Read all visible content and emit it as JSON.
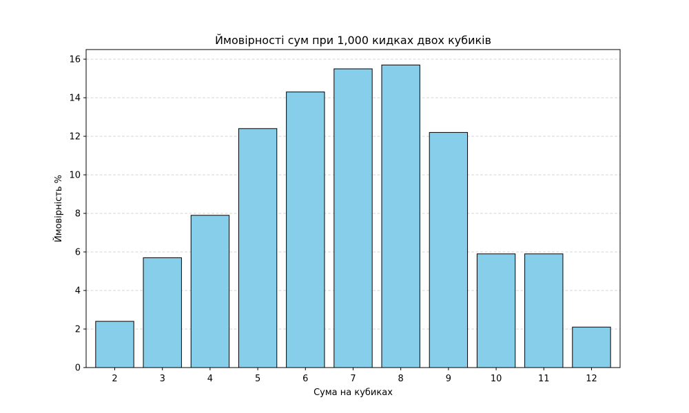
{
  "chart_data": {
    "type": "bar",
    "title": "Ймовірності сум при 1,000 кидках двох кубиків",
    "xlabel": "Сума на кубиках",
    "ylabel": "Ймовірність %",
    "categories": [
      "2",
      "3",
      "4",
      "5",
      "6",
      "7",
      "8",
      "9",
      "10",
      "11",
      "12"
    ],
    "values": [
      2.4,
      5.7,
      7.9,
      12.4,
      14.3,
      15.5,
      15.7,
      12.2,
      5.9,
      5.9,
      2.1
    ],
    "ylim": [
      0,
      16.5
    ],
    "yticks": [
      "0",
      "2",
      "4",
      "6",
      "8",
      "10",
      "12",
      "14",
      "16"
    ],
    "grid": "y-dashed",
    "bar_color": "#87CEEB",
    "edge_color": "#000000"
  }
}
